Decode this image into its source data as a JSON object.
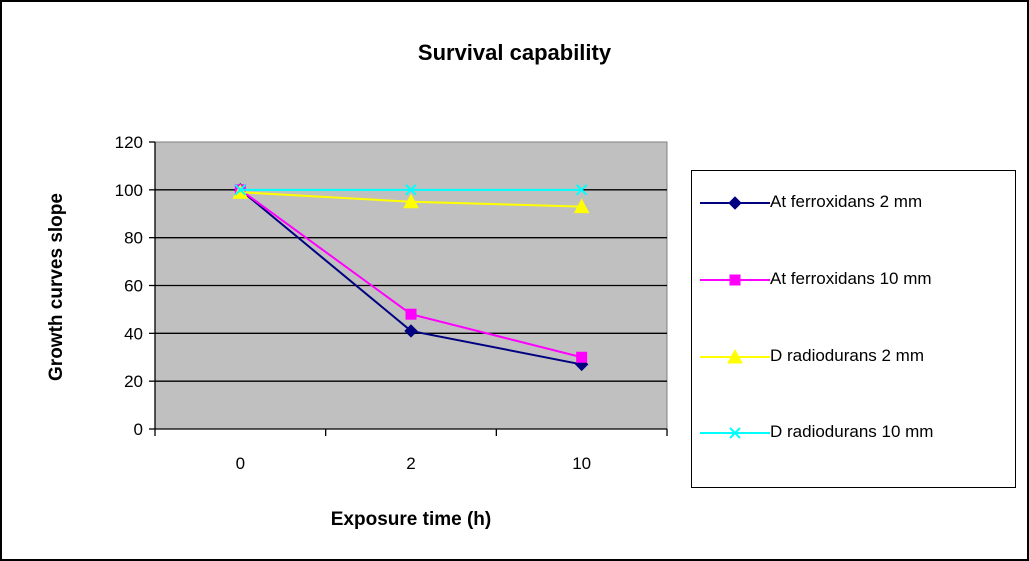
{
  "chart_data": {
    "type": "line",
    "title": "Survival capability",
    "xlabel": "Exposure time (h)",
    "ylabel": "Growth curves slope",
    "categories": [
      "0",
      "2",
      "10"
    ],
    "ylim": [
      0,
      120
    ],
    "yticks": [
      "0",
      "20",
      "40",
      "60",
      "80",
      "100",
      "120"
    ],
    "grid": true,
    "plot_background": "#c0c0c0",
    "legend_position": "right",
    "series": [
      {
        "name": "At ferroxidans 2 mm",
        "values": [
          100,
          41,
          27
        ],
        "color": "#000080",
        "marker": "diamond"
      },
      {
        "name": "At ferroxidans 10 mm",
        "values": [
          100,
          48,
          30
        ],
        "color": "#ff00ff",
        "marker": "square"
      },
      {
        "name": "D radiodurans 2 mm",
        "values": [
          99,
          95,
          93
        ],
        "color": "#ffff00",
        "marker": "triangle"
      },
      {
        "name": "D radiodurans 10 mm",
        "values": [
          100,
          100,
          100
        ],
        "color": "#00ffff",
        "marker": "x"
      }
    ]
  }
}
